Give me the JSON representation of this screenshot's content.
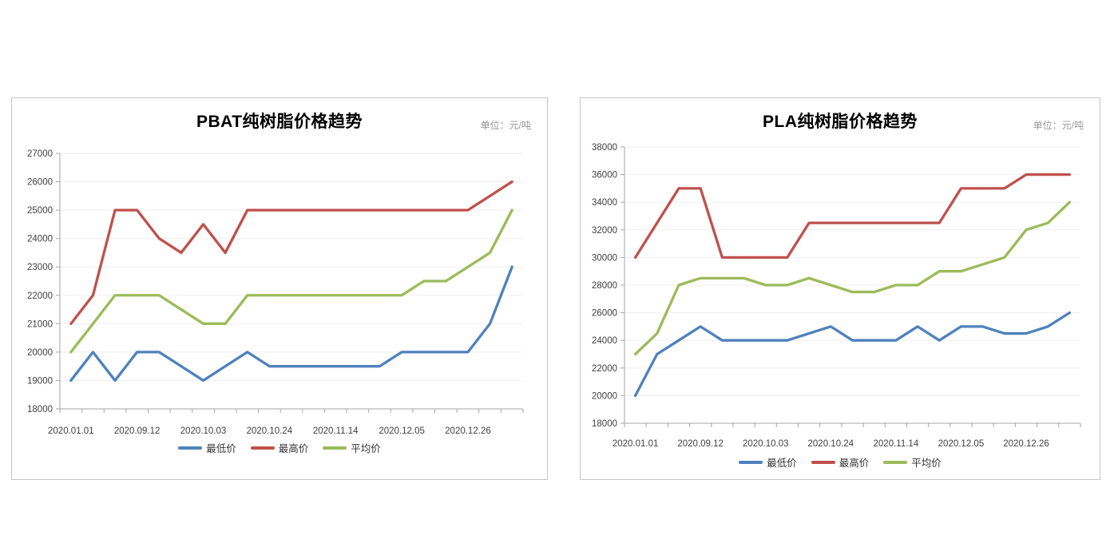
{
  "page": {
    "background": "#ffffff"
  },
  "chart_data": [
    {
      "type": "line",
      "title": "PBAT纯树脂价格趋势",
      "unit_label": "单位：元/吨",
      "legend_position": "bottom",
      "grid": "horizontal",
      "n_points": 21,
      "x_tick_labels": [
        "2020.01.01",
        "2020.09.12",
        "2020.10.03",
        "2020.10.24",
        "2020.11.14",
        "2020.12.05",
        "2020.12.26"
      ],
      "x_tick_label_point_indexes": [
        0,
        3,
        6,
        9,
        12,
        15,
        18
      ],
      "ylim": [
        18000,
        27000
      ],
      "y_tick_step": 1000,
      "series": [
        {
          "name": "最低价",
          "color": "#4F81BD",
          "values": [
            19000,
            20000,
            19000,
            20000,
            20000,
            19500,
            19000,
            19500,
            20000,
            19500,
            19500,
            19500,
            19500,
            19500,
            19500,
            20000,
            20000,
            20000,
            20000,
            21000,
            23000
          ]
        },
        {
          "name": "最高价",
          "color": "#C0504D",
          "values": [
            21000,
            22000,
            25000,
            25000,
            24000,
            23500,
            24500,
            23500,
            25000,
            25000,
            25000,
            25000,
            25000,
            25000,
            25000,
            25000,
            25000,
            25000,
            25000,
            25500,
            26000
          ]
        },
        {
          "name": "平均价",
          "color": "#9BBB59",
          "values": [
            20000,
            21000,
            22000,
            22000,
            22000,
            21500,
            21000,
            21000,
            22000,
            22000,
            22000,
            22000,
            22000,
            22000,
            22000,
            22000,
            22500,
            22500,
            23000,
            23500,
            25000
          ]
        }
      ]
    },
    {
      "type": "line",
      "title": "PLA纯树脂价格趋势",
      "unit_label": "单位：元/吨",
      "legend_position": "bottom",
      "grid": "horizontal",
      "n_points": 21,
      "x_tick_labels": [
        "2020.01.01",
        "2020.09.12",
        "2020.10.03",
        "2020.10.24",
        "2020.11.14",
        "2020.12.05",
        "2020.12.26"
      ],
      "x_tick_label_point_indexes": [
        0,
        3,
        6,
        9,
        12,
        15,
        18
      ],
      "ylim": [
        18000,
        38000
      ],
      "y_tick_step": 2000,
      "series": [
        {
          "name": "最低价",
          "color": "#4F81BD",
          "values": [
            20000,
            23000,
            24000,
            25000,
            24000,
            24000,
            24000,
            24000,
            24500,
            25000,
            24000,
            24000,
            24000,
            25000,
            24000,
            25000,
            25000,
            24500,
            24500,
            25000,
            26000
          ]
        },
        {
          "name": "最高价",
          "color": "#C0504D",
          "values": [
            30000,
            32500,
            35000,
            35000,
            30000,
            30000,
            30000,
            30000,
            32500,
            32500,
            32500,
            32500,
            32500,
            32500,
            32500,
            35000,
            35000,
            35000,
            36000,
            36000,
            36000
          ]
        },
        {
          "name": "平均价",
          "color": "#9BBB59",
          "values": [
            23000,
            24500,
            28000,
            28500,
            28500,
            28500,
            28000,
            28000,
            28500,
            28000,
            27500,
            27500,
            28000,
            28000,
            29000,
            29000,
            29500,
            30000,
            32000,
            32500,
            34000
          ]
        }
      ]
    }
  ]
}
